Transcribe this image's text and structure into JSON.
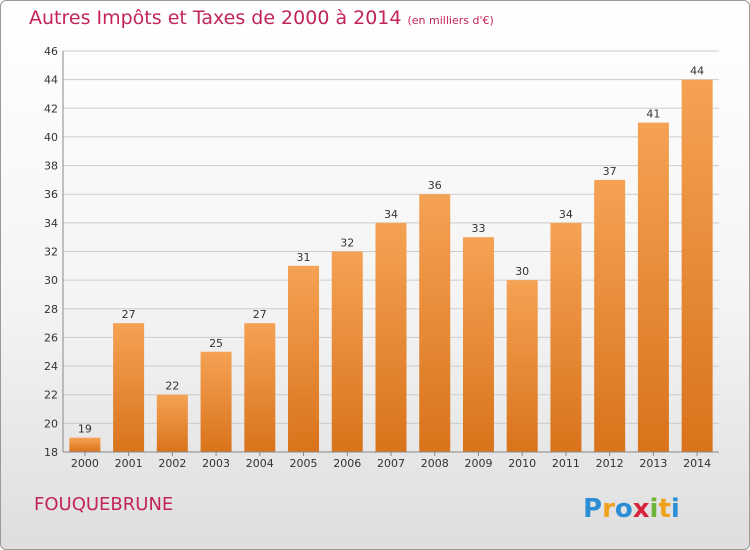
{
  "title": "Autres Impôts et Taxes de 2000 à 2014",
  "subtitle": "(en milliers d'€)",
  "location": "FOUQUEBRUNE",
  "logo_text": "Proxiti",
  "colors": {
    "title": "#c2245a",
    "bar_light": "#f5a254",
    "bar_dark": "#d9731b",
    "grid": "#cccccc"
  },
  "chart_data": {
    "type": "bar",
    "title": "Autres Impôts et Taxes de 2000 à 2014",
    "subtitle": "(en milliers d'€)",
    "xlabel": "",
    "ylabel": "",
    "categories": [
      "2000",
      "2001",
      "2002",
      "2003",
      "2004",
      "2005",
      "2006",
      "2007",
      "2008",
      "2009",
      "2010",
      "2011",
      "2012",
      "2013",
      "2014"
    ],
    "values": [
      19,
      27,
      22,
      25,
      27,
      31,
      32,
      34,
      36,
      33,
      30,
      34,
      37,
      41,
      44
    ],
    "ylim": [
      18,
      46
    ],
    "yticks": [
      18,
      20,
      22,
      24,
      26,
      28,
      30,
      32,
      34,
      36,
      38,
      40,
      42,
      44,
      46
    ],
    "grid": true,
    "data_labels": true
  }
}
